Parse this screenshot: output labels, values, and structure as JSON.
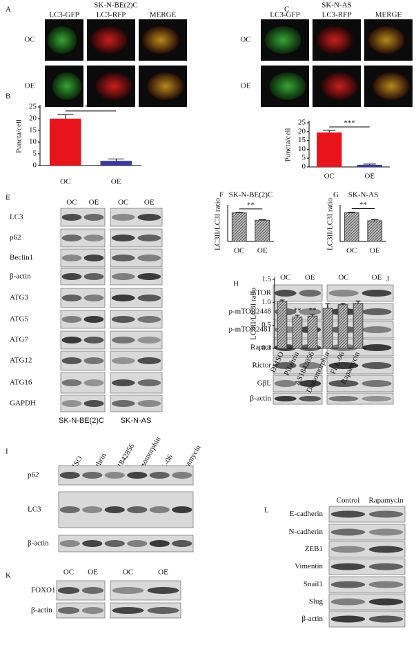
{
  "panels": {
    "A": {
      "letter": "A",
      "title": "SK-N-BE(2)C",
      "columns": [
        "LC3-GFP",
        "LC3-RFP",
        "MERGE"
      ],
      "rows": [
        "OC",
        "OE"
      ]
    },
    "C": {
      "letter": "C",
      "title": "SK-N-AS",
      "columns": [
        "LC3-GFP",
        "LC3-RFP",
        "MERGE"
      ],
      "rows": [
        "OC",
        "OE"
      ]
    },
    "E": {
      "letter": "E",
      "lanes": [
        "OC",
        "OE",
        "OC",
        "OE"
      ],
      "rows": [
        "LC3",
        "p62",
        "Beclin1",
        "β-actin",
        "ATG3",
        "ATG5",
        "ATG7",
        "ATG12",
        "ATG16",
        "GAPDH"
      ],
      "cell_lines": [
        "SK-N-BE(2)C",
        "SK-N-AS"
      ]
    },
    "H": {
      "letter": "H",
      "lanes": [
        "OC",
        "OE",
        "OC",
        "OE"
      ],
      "rows": [
        "mTOR",
        "p-mTOR2448",
        "p-mTOR2481",
        "Raptor",
        "Rictor",
        "GβL",
        "β-actin"
      ]
    },
    "I": {
      "letter": "I",
      "lanes": [
        "DMSO",
        "Pifithrin",
        "AS1842856",
        "Dorsomorphin",
        "FLL-06",
        "Rapamycin"
      ],
      "rows": [
        "p62",
        "LC3",
        "β-actin"
      ]
    },
    "K": {
      "letter": "K",
      "lanes": [
        "OC",
        "OE",
        "OC",
        "OE"
      ],
      "rows": [
        "FOXO1",
        "β-actin"
      ]
    },
    "L": {
      "letter": "L",
      "lanes": [
        "Control",
        "Rapamycin"
      ],
      "rows": [
        "E-cadherin",
        "N-cadherin",
        "ZEB1",
        "Vimentin",
        "Snail1",
        "Slug",
        "β-actin"
      ]
    }
  },
  "chart_data": [
    {
      "letter": "B",
      "type": "bar",
      "ylabel": "Puncta/cell",
      "categories": [
        "OC",
        "OE"
      ],
      "values": [
        20,
        2
      ],
      "errors": [
        1.8,
        0.8
      ],
      "colors": [
        "#e8141b",
        "#3a3a9a"
      ],
      "ylim": [
        0,
        25
      ],
      "yticks": [
        0,
        5,
        10,
        15,
        20,
        25
      ],
      "annotation": "***"
    },
    {
      "letter": "D",
      "type": "bar",
      "ylabel": "Puncta/cell",
      "categories": [
        "OC",
        "OE"
      ],
      "values": [
        19.5,
        1.2
      ],
      "errors": [
        1.2,
        0.4
      ],
      "colors": [
        "#e8141b",
        "#3a3a9a"
      ],
      "ylim": [
        0,
        25
      ],
      "yticks": [
        0,
        5,
        10,
        15,
        20,
        25
      ],
      "annotation": "***"
    },
    {
      "letter": "F",
      "type": "bar",
      "title": "SK-N-BE(2)C",
      "ylabel": "LC3II/LC3I ratio",
      "categories": [
        "OC",
        "OE"
      ],
      "values": [
        0.58,
        0.43
      ],
      "errors": [
        0.01,
        0.01
      ],
      "colors": [
        "#aaaaaa",
        "#888888"
      ],
      "ylim": [
        0,
        0.7
      ],
      "annotation": "**"
    },
    {
      "letter": "G",
      "type": "bar",
      "title": "SK-N-AS",
      "ylabel": "LC3II/LC3I ratio",
      "categories": [
        "OC",
        "OE"
      ],
      "values": [
        0.5,
        0.36
      ],
      "errors": [
        0.01,
        0.02
      ],
      "colors": [
        "#aaaaaa",
        "#888888"
      ],
      "ylim": [
        0,
        0.6
      ],
      "annotation": "**"
    },
    {
      "letter": "J",
      "type": "bar",
      "ylabel": "LC3II/LC3I ratio",
      "categories": [
        "DMSO",
        "Pifithrin",
        "AS1842856",
        "Dorsomorphin",
        "FLL-06",
        "Rapamycin"
      ],
      "values": [
        1.02,
        0.68,
        0.7,
        0.87,
        0.95,
        0.98
      ],
      "errors": [
        0.03,
        0.04,
        0.03,
        0.1,
        0.03,
        0.05
      ],
      "colors": [
        "#aaaaaa",
        "#999999",
        "#999999",
        "#aaaaaa",
        "#aaaaaa",
        "#aaaaaa"
      ],
      "ylim": [
        0,
        1.5
      ],
      "yticks": [
        {
          "value": 0,
          "label": "0.0"
        },
        {
          "value": 0.5,
          "label": "0.5"
        },
        {
          "value": 1,
          "label": "1.0"
        },
        {
          "value": 1.5,
          "label": "1.5"
        }
      ],
      "significance": [
        null,
        "**",
        "**",
        null,
        null,
        null
      ]
    }
  ]
}
